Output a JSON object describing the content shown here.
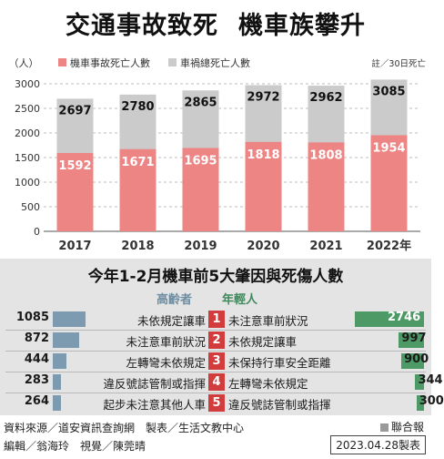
{
  "title": {
    "part1": "交通事故致死",
    "part2": "機車族攀升"
  },
  "chart_data": {
    "type": "bar",
    "categories": [
      "2017",
      "2018",
      "2019",
      "2020",
      "2021",
      "2022年"
    ],
    "series": [
      {
        "name": "車禍總死亡人數",
        "values": [
          2697,
          2780,
          2865,
          2972,
          2962,
          3085
        ],
        "color": "#cbcbcb"
      },
      {
        "name": "機車事故死亡人數",
        "values": [
          1592,
          1671,
          1695,
          1818,
          1808,
          1954
        ],
        "color": "#ee8585"
      }
    ],
    "ylabel": "（人）",
    "yticks": [
      0,
      500,
      1000,
      1500,
      2000,
      2500,
      3000
    ],
    "ylim": [
      0,
      3000
    ],
    "note": "註／30日死亡",
    "legend_position": "top-left",
    "grid": true
  },
  "causes": {
    "title": "今年1-2月機車前5大肇因與死傷人數",
    "elder_label": "高齡者",
    "young_label": "年輕人",
    "elder_color": "#7d9bb0",
    "young_color": "#4e9a66",
    "rank_color": "#d33c3c",
    "rows": [
      {
        "rank": "1",
        "elder_value": 1085,
        "elder_cause": "未依規定讓車",
        "young_cause": "未注意車前狀況",
        "young_value": 2746
      },
      {
        "rank": "2",
        "elder_value": 872,
        "elder_cause": "未注意車前狀況",
        "young_cause": "未依規定讓車",
        "young_value": 997
      },
      {
        "rank": "3",
        "elder_value": 444,
        "elder_cause": "左轉彎未依規定",
        "young_cause": "未保持行車安全距離",
        "young_value": 900
      },
      {
        "rank": "4",
        "elder_value": 283,
        "elder_cause": "違反號誌管制或指揮",
        "young_cause": "左轉彎未依規定",
        "young_value": 344
      },
      {
        "rank": "5",
        "elder_value": 264,
        "elder_cause": "起步未注意其他人車",
        "young_cause": "違反號誌管制或指揮",
        "young_value": 300
      }
    ]
  },
  "footer": {
    "source": "資料來源／道安資訊查詢網　製表／生活文教中心",
    "editors": "編輯／翁海玲　視覺／陳莞晴",
    "brand": "聯合報",
    "date": "2023.04.28製表"
  }
}
